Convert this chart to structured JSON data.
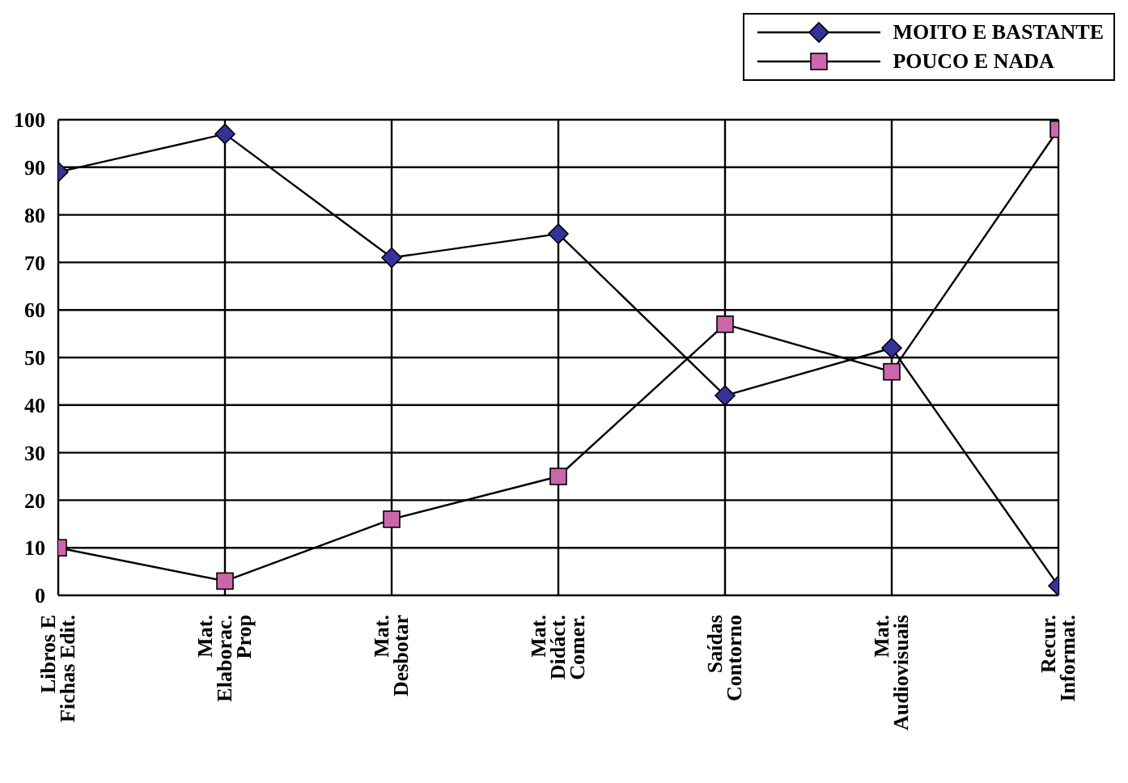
{
  "chart_data": {
    "type": "line",
    "categories": [
      "Libros E\nFichas Edit.",
      "Mat.\nElaborac.\nProp",
      "Mat.\nDesbotar",
      "Mat.\nDidáct.\nComer.",
      "Saídas\nContorno",
      "Mat.\nAudiovisuais",
      "Recur.\nInformat."
    ],
    "series": [
      {
        "name": "MOITO E BASTANTE",
        "color": "#333399",
        "marker": "diamond",
        "values": [
          89,
          97,
          71,
          76,
          42,
          52,
          2
        ]
      },
      {
        "name": "POUCO E NADA",
        "color": "#cc66aa",
        "marker": "square",
        "values": [
          10,
          3,
          16,
          25,
          57,
          47,
          98
        ]
      }
    ],
    "ylim": [
      0,
      100
    ],
    "yticks": [
      0,
      10,
      20,
      30,
      40,
      50,
      60,
      70,
      80,
      90,
      100
    ],
    "grid": true,
    "legend": "top right",
    "line_style": "solid"
  }
}
